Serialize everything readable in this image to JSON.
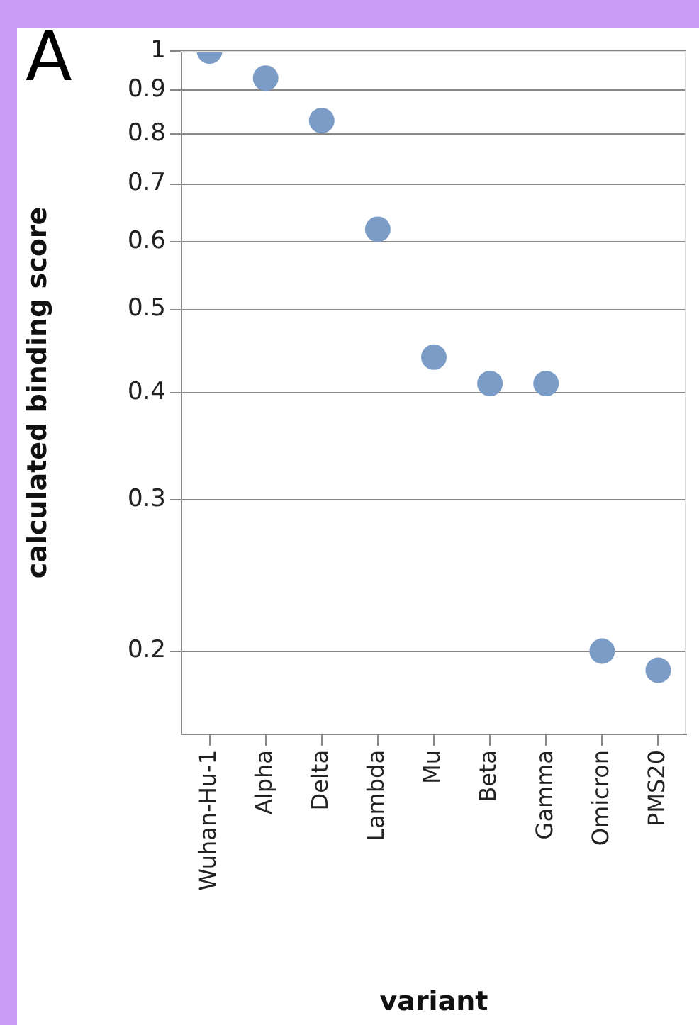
{
  "chart_data": {
    "type": "scatter",
    "xlabel": "variant",
    "ylabel": "calculated binding score",
    "annotations": [
      "A"
    ],
    "categories": [
      "Wuhan-Hu-1",
      "Alpha",
      "Delta",
      "Lambda",
      "Mu",
      "Beta",
      "Gamma",
      "Omicron",
      "PMS20"
    ],
    "values": [
      1.0,
      0.93,
      0.83,
      0.62,
      0.44,
      0.41,
      0.41,
      0.2,
      0.19
    ],
    "color": "#7a9cc6",
    "log": "y",
    "ylim": [
      0.16,
      1
    ],
    "yticks": [
      0.2,
      0.3,
      0.4,
      0.5,
      0.6,
      0.7,
      0.8,
      0.9,
      1
    ],
    "grid": "y",
    "marker": "circle",
    "legend": false
  }
}
